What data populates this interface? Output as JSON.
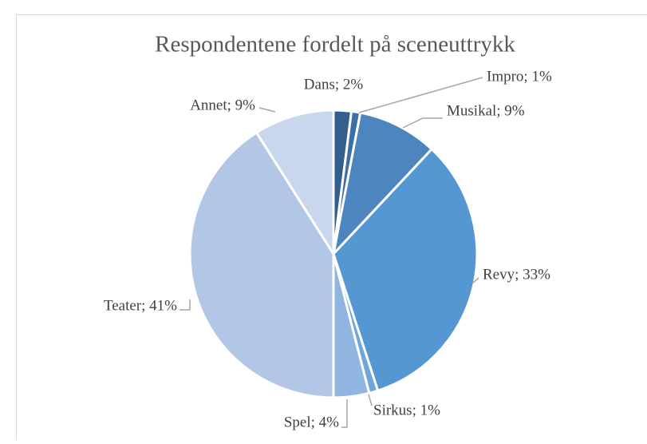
{
  "chart_data": {
    "type": "pie",
    "title": "Respondentene fordelt på sceneuttrykk",
    "values": [
      2,
      1,
      9,
      33,
      1,
      4,
      41,
      9
    ],
    "value_labels": [
      "Dans; 2%",
      "Impro; 1%",
      "Musikal; 9%",
      "Revy; 33%",
      "Sirkus; 1%",
      "Spel; 4%",
      "Teater; 41%",
      "Annet; 9%"
    ],
    "colors": [
      "#335f8e",
      "#3b6fa8",
      "#4d86bf",
      "#5597d2",
      "#6ea6da",
      "#8fb5e0",
      "#b2c7e6",
      "#c8d7ee"
    ]
  }
}
